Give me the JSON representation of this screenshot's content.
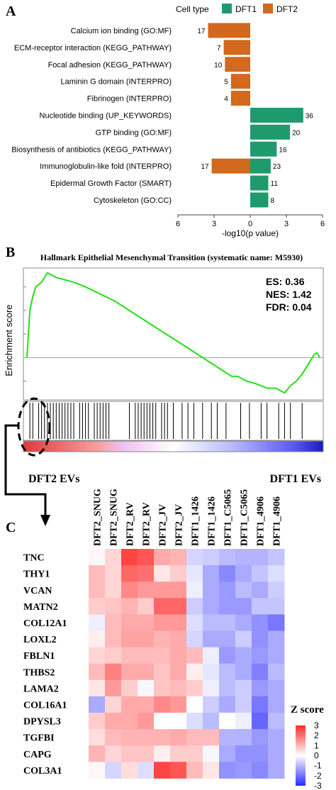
{
  "panels": {
    "a": "A",
    "b": "B",
    "c": "C"
  },
  "colors": {
    "dft1": "#1f9a6f",
    "dft2": "#d2691e",
    "es_line": "#22e01a",
    "z_high": "#ff2a2a",
    "z_low": "#2a2aff",
    "z_mid": "#ffffff"
  },
  "chart_data": [
    {
      "type": "bar",
      "orientation": "horizontal",
      "legend": {
        "title": "Cell type",
        "entries": [
          "DFT1",
          "DFT2"
        ],
        "placement": "top"
      },
      "xlabel": "-log10(p value)",
      "x_ticks": [
        "6",
        "3",
        "0",
        "3",
        "6"
      ],
      "xlim": [
        -6,
        6
      ],
      "categories": [
        "Calcium ion binding (GO:MF)",
        "ECM-receptor interaction (KEGG_PATHWAY)",
        "Focal adhesion (KEGG_PATHWAY)",
        "Laminin G domain (INTERPRO)",
        "Fibrinogen (INTERPRO)",
        "Nucleotide binding (UP_KEYWORDS)",
        "GTP binding (GO:MF)",
        "Biosynthesis of antibiotics (KEGG_PATHWAY)",
        "Immunoglobulin-like fold (INTERPRO)",
        "Epidermal Growth Factor (SMART)",
        "Cytoskeleton (GO:CC)"
      ],
      "series": [
        {
          "name": "DFT2",
          "values": [
            3.5,
            2.2,
            2.1,
            1.6,
            1.6,
            0,
            0,
            0,
            3.2,
            0,
            0
          ],
          "labels": [
            "17",
            "7",
            "10",
            "5",
            "4",
            "",
            "",
            "",
            "17",
            "",
            ""
          ]
        },
        {
          "name": "DFT1",
          "values": [
            0,
            0,
            0,
            0,
            0,
            4.4,
            3.3,
            2.2,
            1.7,
            1.5,
            1.5
          ],
          "labels": [
            "",
            "",
            "",
            "",
            "",
            "36",
            "20",
            "16",
            "23",
            "11",
            "8"
          ]
        }
      ]
    },
    {
      "type": "line",
      "title": "Hallmark Epithelial Mesenchymal Transition (systematic name: M5930)",
      "ylabel": "Enrichment score",
      "stats": [
        "ES: 0.36",
        "NES: 1.42",
        "FDR: 0.04"
      ],
      "left_label": "DFT2 EVs",
      "right_label": "DFT1 EVs",
      "ylim": [
        -0.18,
        0.38
      ],
      "x": [
        0,
        0.01,
        0.02,
        0.03,
        0.05,
        0.07,
        0.1,
        0.13,
        0.16,
        0.2,
        0.25,
        0.3,
        0.35,
        0.4,
        0.45,
        0.5,
        0.55,
        0.6,
        0.65,
        0.7,
        0.72,
        0.75,
        0.78,
        0.8,
        0.82,
        0.85,
        0.88,
        0.9,
        0.92,
        0.94,
        0.96,
        0.98,
        0.99,
        1.0
      ],
      "y": [
        0,
        0.2,
        0.26,
        0.3,
        0.32,
        0.36,
        0.34,
        0.33,
        0.32,
        0.3,
        0.27,
        0.24,
        0.2,
        0.16,
        0.12,
        0.08,
        0.04,
        0.0,
        -0.04,
        -0.08,
        -0.08,
        -0.1,
        -0.11,
        -0.12,
        -0.13,
        -0.13,
        -0.15,
        -0.12,
        -0.1,
        -0.07,
        -0.03,
        0.01,
        0.02,
        0.0
      ],
      "hit_positions": [
        0.01,
        0.02,
        0.04,
        0.05,
        0.06,
        0.07,
        0.08,
        0.09,
        0.1,
        0.11,
        0.12,
        0.13,
        0.14,
        0.15,
        0.16,
        0.18,
        0.19,
        0.2,
        0.21,
        0.23,
        0.24,
        0.25,
        0.26,
        0.27,
        0.28,
        0.35,
        0.37,
        0.38,
        0.39,
        0.4,
        0.41,
        0.42,
        0.43,
        0.44,
        0.46,
        0.47,
        0.48,
        0.5,
        0.53,
        0.55,
        0.57,
        0.6,
        0.63,
        0.65,
        0.68,
        0.73,
        0.76,
        0.8,
        0.82,
        0.86,
        0.88,
        0.9,
        0.94
      ]
    },
    {
      "type": "heatmap",
      "columns": [
        "DFT2_SNUG",
        "DFT2_SNUG",
        "DFT2_RV",
        "DFT2_RV",
        "DFT2_JV",
        "DFT2_JV",
        "DFT1_1426",
        "DFT1_1426",
        "DFT1_C5065",
        "DFT1_C5065",
        "DFT1_4906",
        "DFT1_4906"
      ],
      "rows": [
        "TNC",
        "THY1",
        "VCAN",
        "MATN2",
        "COL12A1",
        "LOXL2",
        "FBLN1",
        "THBS2",
        "LAMA2",
        "COL16A1",
        "DPYSL3",
        "TGFBI",
        "CAPG",
        "COL3A1"
      ],
      "colorbar": {
        "title": "Z score",
        "ticks": [
          "3",
          "2",
          "1",
          "0",
          "-1",
          "-2",
          "-3"
        ],
        "range": [
          -3,
          3
        ]
      },
      "values": [
        [
          0.1,
          0.5,
          2.2,
          2.0,
          1.0,
          0.9,
          -0.5,
          -0.6,
          -0.8,
          -0.9,
          -0.9,
          -0.7
        ],
        [
          0.8,
          0.5,
          1.8,
          1.7,
          0.3,
          0.6,
          -0.3,
          -1.0,
          -1.4,
          -1.0,
          -0.7,
          -0.4
        ],
        [
          0.8,
          0.5,
          1.4,
          1.2,
          1.2,
          1.2,
          -0.2,
          -1.0,
          -1.2,
          -0.8,
          -1.0,
          -0.6
        ],
        [
          0.6,
          0.7,
          0.9,
          0.6,
          1.8,
          1.8,
          -0.6,
          -1.0,
          -1.2,
          -1.2,
          -0.7,
          -0.7
        ],
        [
          -0.2,
          0.8,
          1.0,
          1.0,
          1.2,
          1.2,
          -0.4,
          -0.8,
          -0.8,
          -1.0,
          -1.3,
          -1.6
        ],
        [
          0.2,
          0.8,
          1.1,
          1.1,
          0.9,
          1.0,
          -0.5,
          -1.0,
          -1.0,
          -0.6,
          -1.3,
          -1.0
        ],
        [
          0.5,
          0.6,
          0.8,
          0.8,
          0.8,
          1.0,
          0.8,
          -0.2,
          -1.2,
          -1.0,
          -1.2,
          -1.0
        ],
        [
          0.8,
          1.5,
          1.0,
          1.0,
          0.7,
          1.0,
          0.2,
          -0.3,
          -0.8,
          -1.0,
          -1.5,
          -0.8
        ],
        [
          0.3,
          1.2,
          0.6,
          -0.1,
          0.7,
          0.8,
          0.6,
          -0.2,
          -0.8,
          -0.6,
          -1.2,
          -1.0
        ],
        [
          -1.0,
          0.5,
          1.0,
          1.0,
          1.4,
          1.2,
          0.0,
          -0.6,
          -1.0,
          -0.6,
          -1.6,
          -1.0
        ],
        [
          0.6,
          1.0,
          1.0,
          1.2,
          0.0,
          0.0,
          -0.4,
          -0.8,
          0.0,
          -0.2,
          -1.8,
          -0.8
        ],
        [
          0.4,
          0.8,
          0.9,
          0.9,
          0.9,
          1.0,
          0.8,
          0.8,
          -0.9,
          -0.9,
          -1.2,
          -1.0
        ],
        [
          0.9,
          0.5,
          0.7,
          0.7,
          0.2,
          0.6,
          0.6,
          -0.1,
          -1.0,
          -1.3,
          -1.3,
          -1.0
        ],
        [
          0.1,
          -0.5,
          0.4,
          -0.4,
          2.2,
          2.0,
          0.8,
          0.3,
          -1.3,
          -1.2,
          -1.4,
          -1.0
        ]
      ]
    }
  ]
}
